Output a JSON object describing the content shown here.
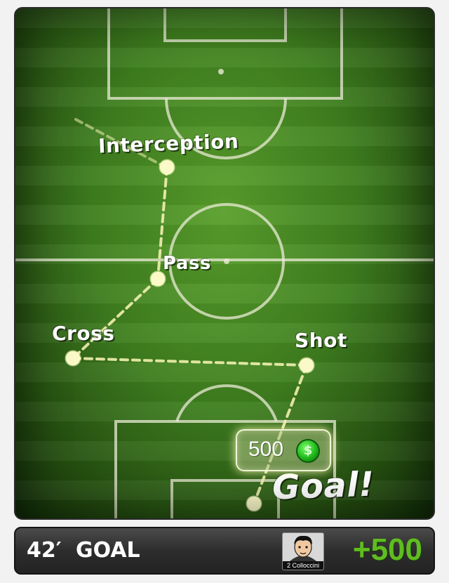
{
  "play": {
    "labels": {
      "interception": "Interception",
      "pass": "Pass",
      "cross": "Cross",
      "shot": "Shot",
      "goal": "Goal!"
    },
    "reward": {
      "amount": "500",
      "coin_symbol": "$",
      "coin_color": "#22c11c"
    }
  },
  "status": {
    "minute": "42′",
    "event": "GOAL",
    "player_name": "2 Colloccini",
    "points": "+500",
    "points_color": "#5fbd1f"
  }
}
